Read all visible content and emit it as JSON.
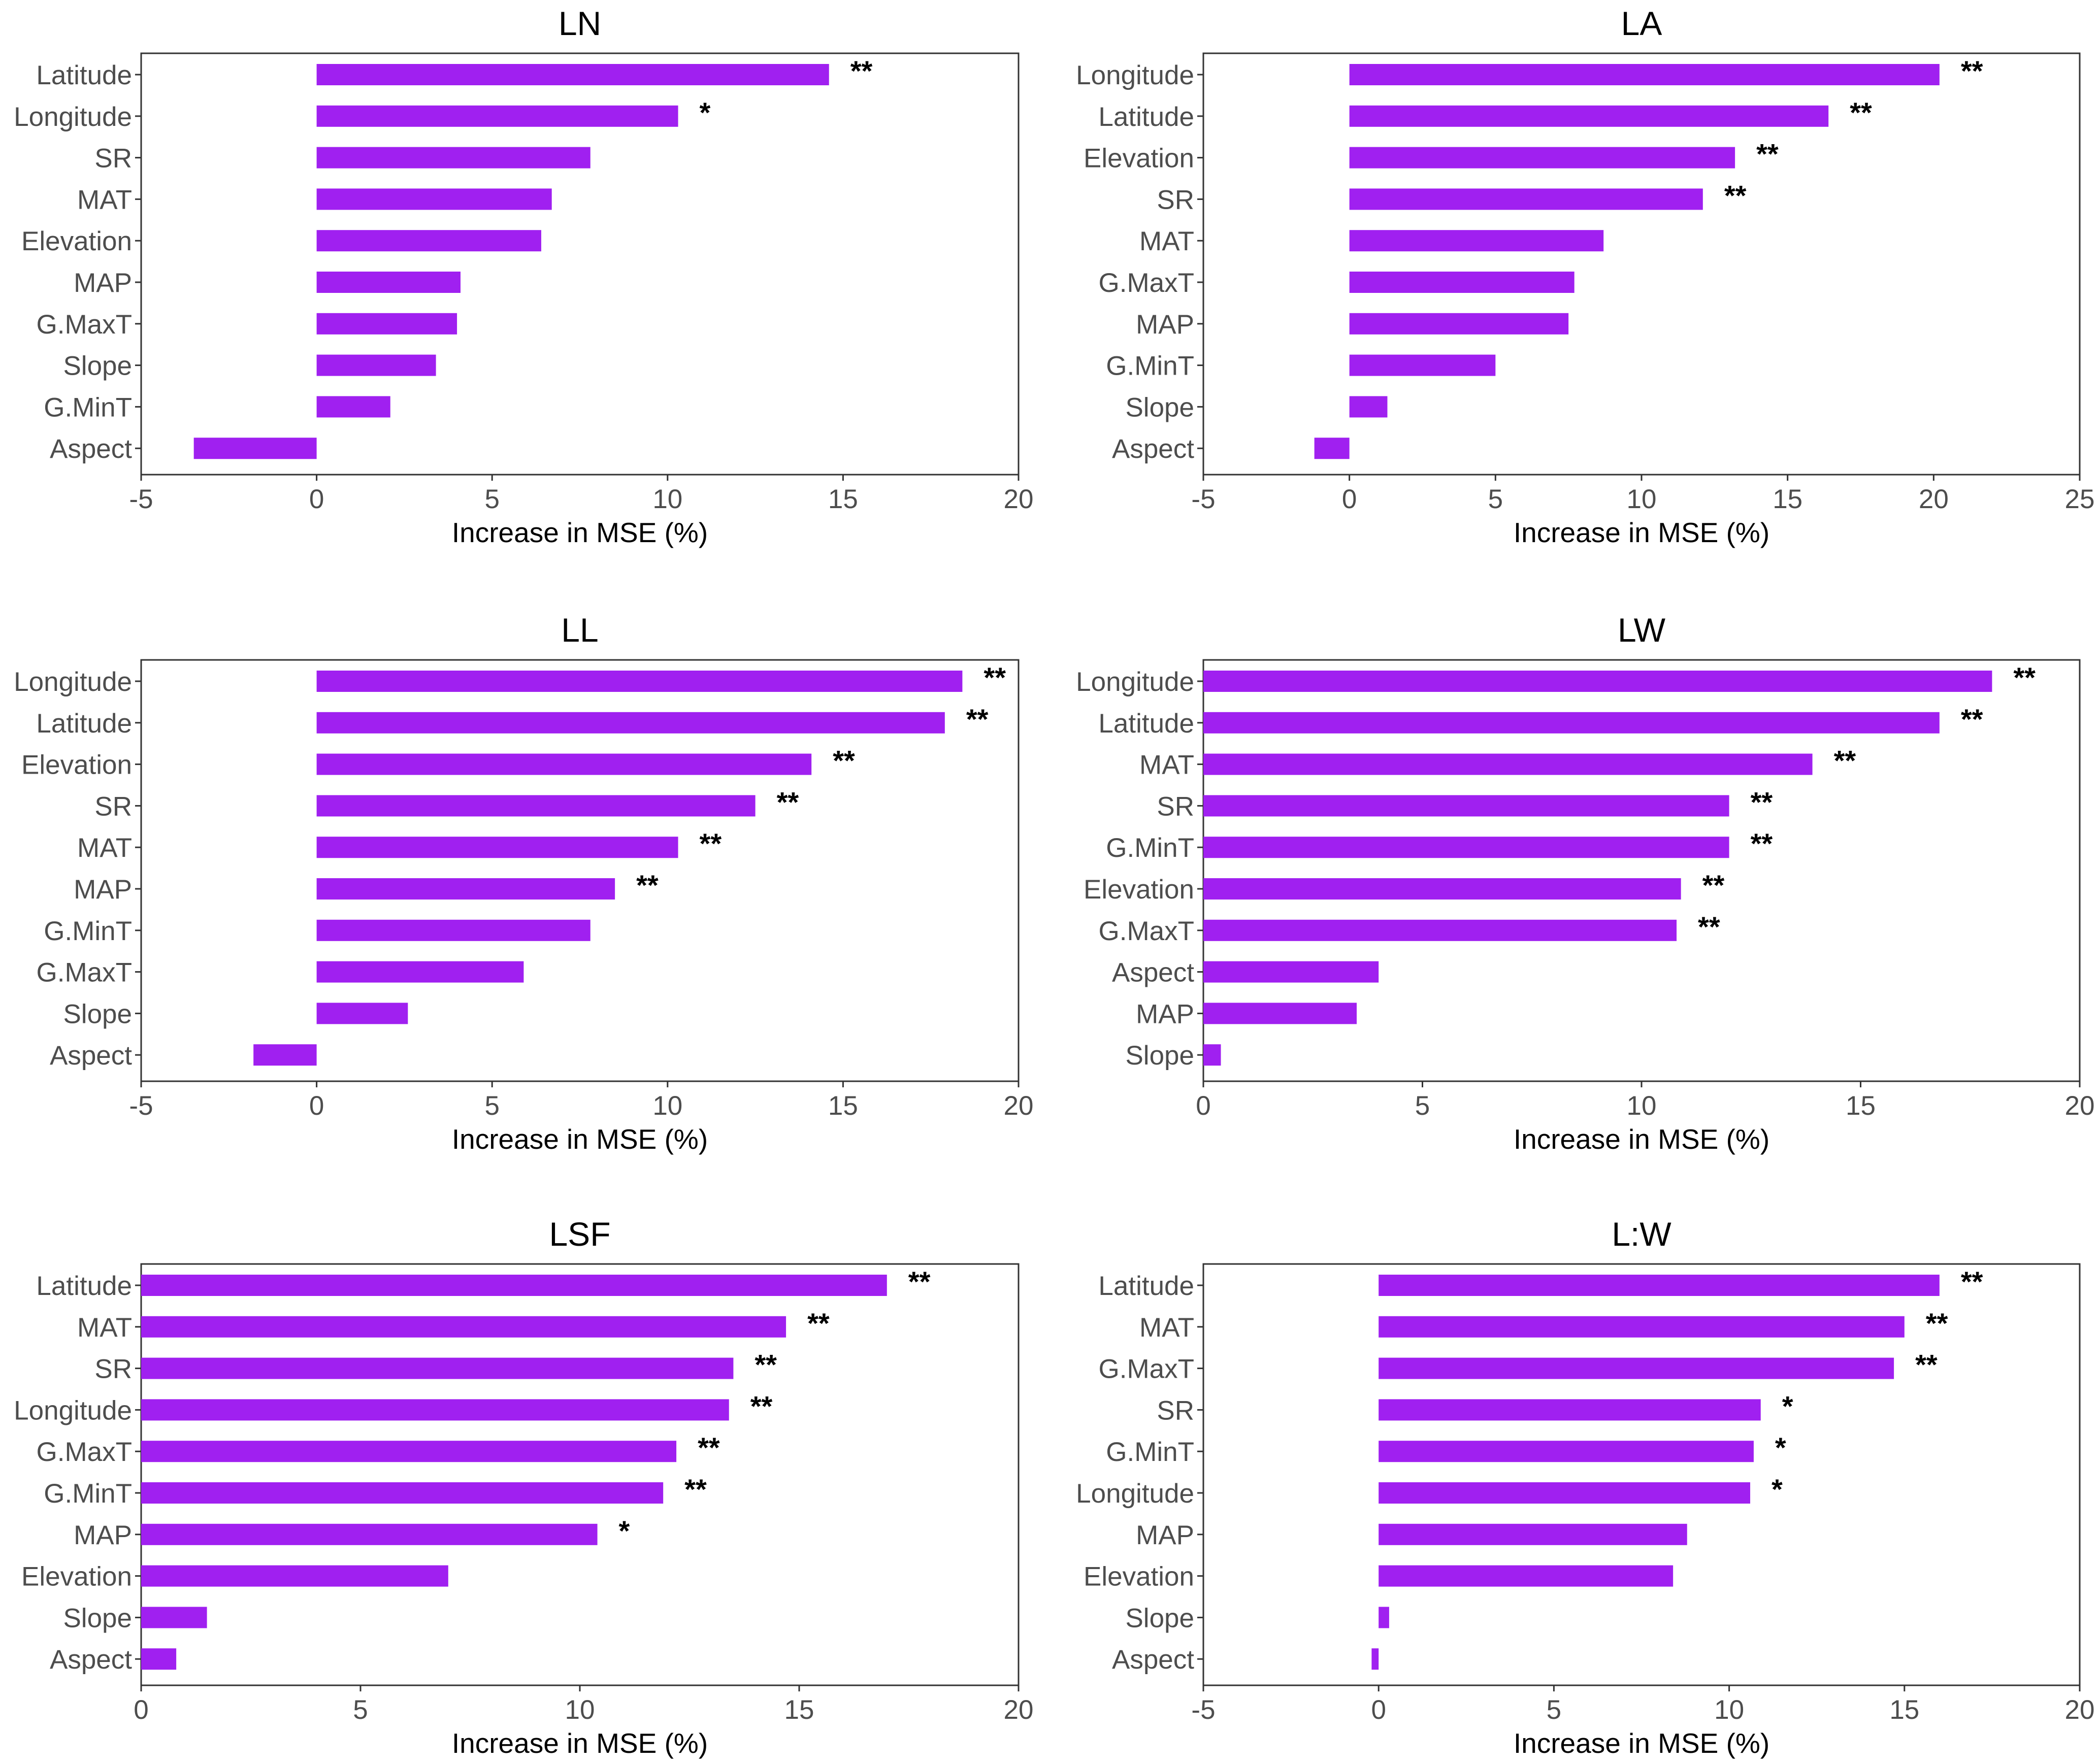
{
  "colors": {
    "bar": "#A020F0",
    "text": "#000000",
    "axis_text": "#4D4D4D",
    "frame": "#333333"
  },
  "chart_data": [
    {
      "type": "bar",
      "orientation": "horizontal",
      "title": "LN",
      "xlabel": "Increase in MSE (%)",
      "xlim": [
        -5,
        20
      ],
      "xticks": [
        -5,
        0,
        5,
        10,
        15,
        20
      ],
      "categories": [
        "Latitude",
        "Longitude",
        "SR",
        "MAT",
        "Elevation",
        "MAP",
        "G.MaxT",
        "Slope",
        "G.MinT",
        "Aspect"
      ],
      "values": [
        14.6,
        10.3,
        7.8,
        6.7,
        6.4,
        4.1,
        4.0,
        3.4,
        2.1,
        -3.5
      ],
      "significance": [
        "**",
        "*",
        "",
        "",
        "",
        "",
        "",
        "",
        "",
        ""
      ]
    },
    {
      "type": "bar",
      "orientation": "horizontal",
      "title": "LA",
      "xlabel": "Increase in MSE (%)",
      "xlim": [
        -5,
        25
      ],
      "xticks": [
        -5,
        0,
        5,
        10,
        15,
        20,
        25
      ],
      "categories": [
        "Longitude",
        "Latitude",
        "Elevation",
        "SR",
        "MAT",
        "G.MaxT",
        "MAP",
        "G.MinT",
        "Slope",
        "Aspect"
      ],
      "values": [
        20.2,
        16.4,
        13.2,
        12.1,
        8.7,
        7.7,
        7.5,
        5.0,
        1.3,
        -1.2
      ],
      "significance": [
        "**",
        "**",
        "**",
        "**",
        "",
        "",
        "",
        "",
        "",
        ""
      ]
    },
    {
      "type": "bar",
      "orientation": "horizontal",
      "title": "LL",
      "xlabel": "Increase in MSE (%)",
      "xlim": [
        -5,
        20
      ],
      "xticks": [
        -5,
        0,
        5,
        10,
        15,
        20
      ],
      "categories": [
        "Longitude",
        "Latitude",
        "Elevation",
        "SR",
        "MAT",
        "MAP",
        "G.MinT",
        "G.MaxT",
        "Slope",
        "Aspect"
      ],
      "values": [
        18.4,
        17.9,
        14.1,
        12.5,
        10.3,
        8.5,
        7.8,
        5.9,
        2.6,
        -1.8
      ],
      "significance": [
        "**",
        "**",
        "**",
        "**",
        "**",
        "**",
        "",
        "",
        "",
        ""
      ]
    },
    {
      "type": "bar",
      "orientation": "horizontal",
      "title": "LW",
      "xlabel": "Increase in MSE (%)",
      "xlim": [
        0,
        20
      ],
      "xticks": [
        0,
        5,
        10,
        15,
        20
      ],
      "categories": [
        "Longitude",
        "Latitude",
        "MAT",
        "SR",
        "G.MinT",
        "Elevation",
        "G.MaxT",
        "Aspect",
        "MAP",
        "Slope"
      ],
      "values": [
        18.0,
        16.8,
        13.9,
        12.0,
        12.0,
        10.9,
        10.8,
        4.0,
        3.5,
        0.4
      ],
      "significance": [
        "**",
        "**",
        "**",
        "**",
        "**",
        "**",
        "**",
        "",
        "",
        ""
      ]
    },
    {
      "type": "bar",
      "orientation": "horizontal",
      "title": "LSF",
      "xlabel": "Increase in MSE (%)",
      "xlim": [
        0,
        20
      ],
      "xticks": [
        0,
        5,
        10,
        15,
        20
      ],
      "categories": [
        "Latitude",
        "MAT",
        "SR",
        "Longitude",
        "G.MaxT",
        "G.MinT",
        "MAP",
        "Elevation",
        "Slope",
        "Aspect"
      ],
      "values": [
        17.0,
        14.7,
        13.5,
        13.4,
        12.2,
        11.9,
        10.4,
        7.0,
        1.5,
        0.8
      ],
      "significance": [
        "**",
        "**",
        "**",
        "**",
        "**",
        "**",
        "*",
        "",
        "",
        ""
      ]
    },
    {
      "type": "bar",
      "orientation": "horizontal",
      "title": "L:W",
      "xlabel": "Increase in MSE (%)",
      "xlim": [
        -5,
        20
      ],
      "xticks": [
        -5,
        0,
        5,
        10,
        15,
        20
      ],
      "categories": [
        "Latitude",
        "MAT",
        "G.MaxT",
        "SR",
        "G.MinT",
        "Longitude",
        "MAP",
        "Elevation",
        "Slope",
        "Aspect"
      ],
      "values": [
        16.0,
        15.0,
        14.7,
        10.9,
        10.7,
        10.6,
        8.8,
        8.4,
        0.3,
        -0.2
      ],
      "significance": [
        "**",
        "**",
        "**",
        "*",
        "*",
        "*",
        "",
        "",
        "",
        ""
      ]
    }
  ]
}
